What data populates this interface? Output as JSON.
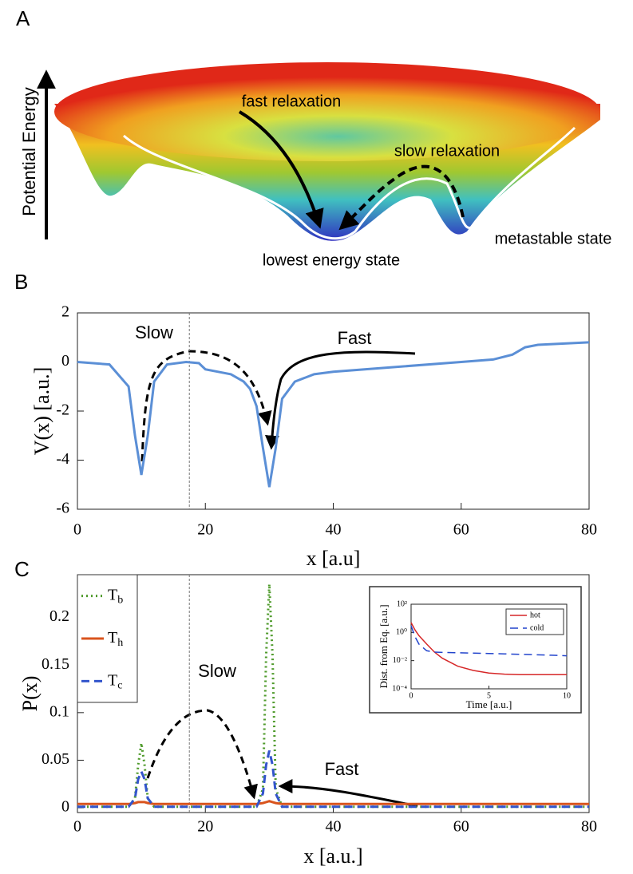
{
  "panel_a": {
    "label": "A",
    "axis_label": "Potential Energy",
    "fast": "fast relaxation",
    "slow": "slow relaxation",
    "metastable": "metastable state",
    "lowest": "lowest energy state"
  },
  "chart_data": [
    {
      "type": "line",
      "panel_label": "B",
      "xlabel": "x [a.u]",
      "ylabel": "V(x) [a.u.]",
      "x": [
        0,
        5,
        8,
        9,
        10,
        11,
        12,
        14,
        17,
        19,
        20,
        22,
        24,
        26,
        27,
        28,
        29,
        30,
        31,
        32,
        34,
        37,
        40,
        50,
        60,
        65,
        68,
        70,
        72,
        80
      ],
      "series": [
        {
          "color": "#5b8fd6",
          "linestyle": "solid",
          "values": [
            0,
            -0.1,
            -1.0,
            -3.0,
            -4.6,
            -3.0,
            -0.8,
            -0.1,
            0,
            -0.05,
            -0.3,
            -0.4,
            -0.5,
            -0.8,
            -1.1,
            -1.8,
            -3.5,
            -5.1,
            -3.5,
            -1.5,
            -0.8,
            -0.5,
            -0.4,
            -0.2,
            0,
            0.1,
            0.3,
            0.6,
            0.7,
            0.8
          ]
        }
      ],
      "xlim": [
        0,
        80
      ],
      "ylim": [
        -6,
        2
      ],
      "xticks": [
        0,
        20,
        40,
        60,
        80
      ],
      "yticks": [
        -6,
        -4,
        -2,
        0,
        2
      ],
      "vline": 17.5,
      "annotations": [
        "Slow",
        "Fast"
      ]
    },
    {
      "type": "line",
      "panel_label": "C",
      "xlabel": "x [a.u.]",
      "ylabel": "P(x)",
      "x": [
        0,
        5,
        8,
        9,
        9.5,
        10,
        10.5,
        11,
        12,
        15,
        20,
        25,
        28,
        29,
        29.5,
        30,
        30.5,
        31,
        32,
        35,
        40,
        50,
        60,
        70,
        80
      ],
      "series": [
        {
          "name": "Tb",
          "color": "#4e9a2a",
          "linestyle": "dotted",
          "values": [
            0.001,
            0.001,
            0.001,
            0.01,
            0.045,
            0.068,
            0.045,
            0.01,
            0.001,
            0.001,
            0.001,
            0.001,
            0.001,
            0.02,
            0.16,
            0.235,
            0.16,
            0.02,
            0.001,
            0.001,
            0.001,
            0.001,
            0.001,
            0.001,
            0.001
          ]
        },
        {
          "name": "Th",
          "color": "#d9541e",
          "linestyle": "solid",
          "values": [
            0.004,
            0.004,
            0.004,
            0.005,
            0.006,
            0.006,
            0.006,
            0.005,
            0.004,
            0.004,
            0.004,
            0.004,
            0.004,
            0.005,
            0.006,
            0.007,
            0.006,
            0.005,
            0.004,
            0.004,
            0.004,
            0.004,
            0.004,
            0.004,
            0.004
          ]
        },
        {
          "name": "Tc",
          "color": "#3355cc",
          "linestyle": "dashed",
          "values": [
            0.001,
            0.001,
            0.001,
            0.01,
            0.03,
            0.038,
            0.03,
            0.01,
            0.001,
            0.001,
            0.001,
            0.001,
            0.001,
            0.015,
            0.045,
            0.06,
            0.045,
            0.015,
            0.001,
            0.001,
            0.001,
            0.001,
            0.001,
            0.001,
            0.001
          ]
        }
      ],
      "xlim": [
        0,
        80
      ],
      "ylim": [
        -0.005,
        0.245
      ],
      "xticks": [
        0,
        20,
        40,
        60,
        80
      ],
      "yticks": [
        0,
        0.05,
        0.1,
        0.15,
        0.2
      ],
      "vline": 17.5,
      "annotations": [
        "Slow",
        "Fast"
      ],
      "legend": "upper left"
    },
    {
      "type": "line",
      "xlabel": "Time [a.u.]",
      "ylabel": "Dist. from Eq. [a.u.]",
      "log_y": true,
      "x": [
        0,
        0.25,
        0.5,
        1,
        1.5,
        2,
        3,
        4,
        5,
        6,
        7,
        8,
        9,
        10
      ],
      "series": [
        {
          "name": "hot",
          "color": "#d62728",
          "linestyle": "solid",
          "values": [
            5,
            1.5,
            0.6,
            0.15,
            0.04,
            0.015,
            0.004,
            0.002,
            0.0013,
            0.0011,
            0.001,
            0.001,
            0.001,
            0.001
          ]
        },
        {
          "name": "cold",
          "color": "#2244cc",
          "linestyle": "dashed",
          "values": [
            3,
            0.5,
            0.15,
            0.05,
            0.04,
            0.038,
            0.036,
            0.034,
            0.032,
            0.03,
            0.028,
            0.026,
            0.024,
            0.022
          ]
        }
      ],
      "xlim": [
        0,
        10
      ],
      "ylim": [
        0.0001,
        100
      ],
      "xticks": [
        0,
        5,
        10
      ],
      "yticks": [
        {
          "value": 0.0001,
          "label": "10⁻⁴"
        },
        {
          "value": 0.01,
          "label": "10⁻²"
        },
        {
          "value": 1,
          "label": "10⁰"
        },
        {
          "value": 100,
          "label": "10²"
        }
      ],
      "legend": "upper right"
    }
  ]
}
